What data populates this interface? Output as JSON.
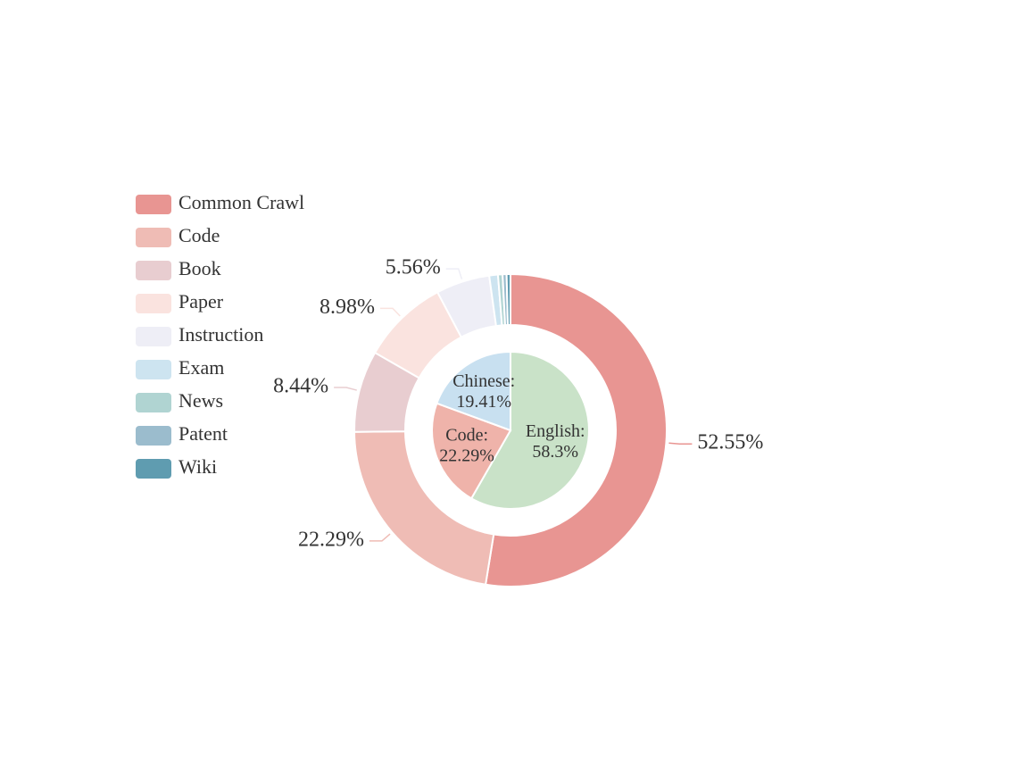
{
  "chart_data": [
    {
      "type": "donut",
      "categories": [
        "Common Crawl",
        "Code",
        "Book",
        "Paper",
        "Instruction",
        "Exam",
        "News",
        "Patent",
        "Wiki"
      ],
      "values": [
        52.55,
        22.29,
        8.44,
        8.98,
        5.56,
        0.9,
        0.47,
        0.41,
        0.4
      ],
      "value_labels": [
        "52.55%",
        "22.29%",
        "8.44%",
        "8.98%",
        "5.56%",
        null,
        null,
        null,
        null
      ],
      "colors": [
        "#e89592",
        "#efbcb5",
        "#e8cdd0",
        "#fae3df",
        "#eeeef6",
        "#cde4f0",
        "#b0d4d2",
        "#9bbccd",
        "#5f9cb0"
      ],
      "legend": "left"
    },
    {
      "type": "pie",
      "categories": [
        "English:",
        "Code:",
        "Chinese:"
      ],
      "values": [
        58.3,
        22.29,
        19.41
      ],
      "value_labels": [
        "58.3%",
        "22.29%",
        "19.41%"
      ],
      "colors": [
        "#c9e2c8",
        "#efb3aa",
        "#c8e0f0"
      ]
    }
  ]
}
